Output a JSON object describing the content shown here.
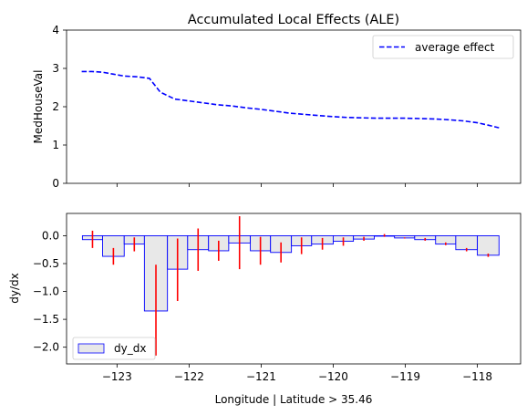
{
  "chart_data": [
    {
      "type": "line",
      "title": "Accumulated Local Effects (ALE)",
      "xlabel": "",
      "ylabel": "MedHouseVal",
      "xlim": [
        -123.7,
        -117.4
      ],
      "ylim": [
        0,
        4
      ],
      "yticks": [
        0,
        1,
        2,
        3,
        4
      ],
      "legend": "top-right",
      "series": [
        {
          "name": "average effect",
          "color": "#0000ff",
          "style": "dashed",
          "x": [
            -123.49,
            -123.35,
            -123.2,
            -123.05,
            -122.9,
            -122.72,
            -122.55,
            -122.4,
            -122.2,
            -122.0,
            -121.8,
            -121.6,
            -121.4,
            -121.2,
            -121.0,
            -120.8,
            -120.6,
            -120.4,
            -120.2,
            -120.0,
            -119.8,
            -119.6,
            -119.4,
            -119.2,
            -119.0,
            -118.8,
            -118.6,
            -118.4,
            -118.2,
            -118.0,
            -117.85,
            -117.7
          ],
          "y": [
            2.92,
            2.92,
            2.9,
            2.85,
            2.8,
            2.78,
            2.74,
            2.38,
            2.2,
            2.15,
            2.1,
            2.05,
            2.02,
            1.97,
            1.93,
            1.88,
            1.83,
            1.8,
            1.77,
            1.74,
            1.72,
            1.71,
            1.7,
            1.7,
            1.7,
            1.69,
            1.68,
            1.66,
            1.63,
            1.58,
            1.52,
            1.45
          ]
        }
      ]
    },
    {
      "type": "bar",
      "title": "",
      "xlabel": "Longitude | Latitude > 35.46",
      "ylabel": "dy/dx",
      "xlim": [
        -123.7,
        -117.4
      ],
      "ylim": [
        -2.3,
        0.4
      ],
      "xticks": [
        -123,
        -122,
        -121,
        -120,
        -119,
        -118
      ],
      "yticks": [
        0.0,
        -0.5,
        -1.0,
        -1.5,
        -2.0
      ],
      "legend": "bottom-left",
      "series": [
        {
          "name": "dy_dx",
          "fill": "#e8e8e8",
          "edge": "#0000ff",
          "error_color": "#ff0000",
          "bins": [
            {
              "x0": -123.48,
              "x1": -123.2,
              "value": -0.07,
              "lo": -0.22,
              "hi": 0.09
            },
            {
              "x0": -123.2,
              "x1": -122.9,
              "value": -0.37,
              "lo": -0.52,
              "hi": -0.22
            },
            {
              "x0": -122.9,
              "x1": -122.62,
              "value": -0.15,
              "lo": -0.28,
              "hi": -0.03
            },
            {
              "x0": -122.62,
              "x1": -122.3,
              "value": -1.35,
              "lo": -2.15,
              "hi": -0.52
            },
            {
              "x0": -122.3,
              "x1": -122.02,
              "value": -0.6,
              "lo": -1.17,
              "hi": -0.05
            },
            {
              "x0": -122.02,
              "x1": -121.73,
              "value": -0.25,
              "lo": -0.63,
              "hi": 0.13
            },
            {
              "x0": -121.73,
              "x1": -121.45,
              "value": -0.27,
              "lo": -0.45,
              "hi": -0.09
            },
            {
              "x0": -121.45,
              "x1": -121.15,
              "value": -0.13,
              "lo": -0.6,
              "hi": 0.35
            },
            {
              "x0": -121.15,
              "x1": -120.87,
              "value": -0.27,
              "lo": -0.52,
              "hi": -0.02
            },
            {
              "x0": -120.87,
              "x1": -120.58,
              "value": -0.3,
              "lo": -0.48,
              "hi": -0.12
            },
            {
              "x0": -120.58,
              "x1": -120.3,
              "value": -0.18,
              "lo": -0.33,
              "hi": -0.03
            },
            {
              "x0": -120.3,
              "x1": -120.0,
              "value": -0.15,
              "lo": -0.25,
              "hi": -0.04
            },
            {
              "x0": -120.0,
              "x1": -119.72,
              "value": -0.1,
              "lo": -0.18,
              "hi": -0.03
            },
            {
              "x0": -119.72,
              "x1": -119.43,
              "value": -0.06,
              "lo": -0.09,
              "hi": -0.02
            },
            {
              "x0": -119.43,
              "x1": -119.15,
              "value": 0.0,
              "lo": -0.02,
              "hi": 0.03
            },
            {
              "x0": -119.15,
              "x1": -118.87,
              "value": -0.04,
              "lo": -0.05,
              "hi": -0.03
            },
            {
              "x0": -118.87,
              "x1": -118.58,
              "value": -0.07,
              "lo": -0.09,
              "hi": -0.04
            },
            {
              "x0": -118.58,
              "x1": -118.3,
              "value": -0.15,
              "lo": -0.17,
              "hi": -0.12
            },
            {
              "x0": -118.3,
              "x1": -118.0,
              "value": -0.25,
              "lo": -0.28,
              "hi": -0.22
            },
            {
              "x0": -118.0,
              "x1": -117.7,
              "value": -0.35,
              "lo": -0.38,
              "hi": -0.32
            }
          ]
        }
      ]
    }
  ]
}
